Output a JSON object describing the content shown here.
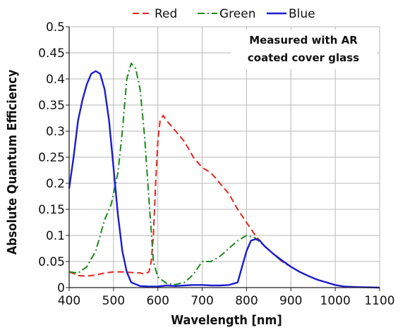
{
  "chart_data": {
    "type": "line",
    "xlabel": "Wavelength [nm]",
    "ylabel": "Absolute Quantum Efficiency",
    "xlim": [
      400,
      1100
    ],
    "ylim": [
      0,
      0.5
    ],
    "x_ticks": [
      400,
      500,
      600,
      700,
      800,
      900,
      1000,
      1100
    ],
    "y_ticks": [
      0,
      0.05,
      0.1,
      0.15,
      0.2,
      0.25,
      0.3,
      0.35,
      0.4,
      0.45,
      0.5
    ],
    "x_tick_labels": [
      "400",
      "500",
      "600",
      "700",
      "800",
      "900",
      "1000",
      "1100"
    ],
    "y_tick_labels": [
      "0",
      "0.05",
      "0.1",
      "0.15",
      "0.2",
      "0.25",
      "0.3",
      "0.35",
      "0.4",
      "0.45",
      "0.5"
    ],
    "grid": true,
    "legend_position": "top",
    "annotation": [
      "Measured with AR",
      "coated cover glass"
    ],
    "series": [
      {
        "name": "Red",
        "color": "#e8231d",
        "dash": "dashed",
        "points": [
          [
            400,
            0.03
          ],
          [
            410,
            0.027
          ],
          [
            420,
            0.023
          ],
          [
            440,
            0.022
          ],
          [
            460,
            0.024
          ],
          [
            480,
            0.028
          ],
          [
            500,
            0.03
          ],
          [
            520,
            0.03
          ],
          [
            540,
            0.029
          ],
          [
            560,
            0.028
          ],
          [
            570,
            0.026
          ],
          [
            580,
            0.03
          ],
          [
            585,
            0.05
          ],
          [
            590,
            0.1
          ],
          [
            595,
            0.2
          ],
          [
            600,
            0.28
          ],
          [
            605,
            0.32
          ],
          [
            612,
            0.33
          ],
          [
            620,
            0.32
          ],
          [
            640,
            0.3
          ],
          [
            660,
            0.28
          ],
          [
            680,
            0.25
          ],
          [
            700,
            0.23
          ],
          [
            720,
            0.22
          ],
          [
            740,
            0.2
          ],
          [
            760,
            0.18
          ],
          [
            780,
            0.15
          ],
          [
            800,
            0.125
          ],
          [
            820,
            0.1
          ],
          [
            840,
            0.08
          ],
          [
            860,
            0.065
          ],
          [
            880,
            0.05
          ],
          [
            900,
            0.04
          ],
          [
            920,
            0.03
          ],
          [
            940,
            0.022
          ],
          [
            960,
            0.015
          ],
          [
            980,
            0.01
          ],
          [
            1000,
            0.005
          ],
          [
            1020,
            0.002
          ],
          [
            1050,
            0.001
          ],
          [
            1100,
            0.0
          ]
        ]
      },
      {
        "name": "Green",
        "color": "#1a8a1a",
        "dash": "dashdot",
        "points": [
          [
            400,
            0.03
          ],
          [
            420,
            0.028
          ],
          [
            440,
            0.04
          ],
          [
            460,
            0.07
          ],
          [
            480,
            0.13
          ],
          [
            495,
            0.16
          ],
          [
            510,
            0.22
          ],
          [
            520,
            0.3
          ],
          [
            530,
            0.4
          ],
          [
            540,
            0.43
          ],
          [
            550,
            0.42
          ],
          [
            560,
            0.38
          ],
          [
            570,
            0.29
          ],
          [
            580,
            0.17
          ],
          [
            590,
            0.05
          ],
          [
            600,
            0.02
          ],
          [
            620,
            0.008
          ],
          [
            640,
            0.006
          ],
          [
            660,
            0.01
          ],
          [
            680,
            0.025
          ],
          [
            700,
            0.05
          ],
          [
            720,
            0.05
          ],
          [
            740,
            0.06
          ],
          [
            760,
            0.075
          ],
          [
            780,
            0.09
          ],
          [
            800,
            0.1
          ],
          [
            820,
            0.095
          ],
          [
            840,
            0.08
          ],
          [
            860,
            0.065
          ],
          [
            880,
            0.05
          ],
          [
            900,
            0.04
          ],
          [
            920,
            0.03
          ],
          [
            940,
            0.022
          ],
          [
            960,
            0.015
          ],
          [
            980,
            0.01
          ],
          [
            1000,
            0.005
          ],
          [
            1020,
            0.002
          ],
          [
            1050,
            0.001
          ],
          [
            1100,
            0.0
          ]
        ]
      },
      {
        "name": "Blue",
        "color": "#1c1cd0",
        "dash": "solid",
        "points": [
          [
            400,
            0.19
          ],
          [
            410,
            0.25
          ],
          [
            420,
            0.32
          ],
          [
            430,
            0.36
          ],
          [
            440,
            0.39
          ],
          [
            450,
            0.41
          ],
          [
            460,
            0.415
          ],
          [
            470,
            0.41
          ],
          [
            480,
            0.38
          ],
          [
            490,
            0.32
          ],
          [
            500,
            0.23
          ],
          [
            510,
            0.14
          ],
          [
            520,
            0.07
          ],
          [
            530,
            0.03
          ],
          [
            540,
            0.01
          ],
          [
            560,
            0.003
          ],
          [
            580,
            0.002
          ],
          [
            600,
            0.002
          ],
          [
            620,
            0.004
          ],
          [
            640,
            0.003
          ],
          [
            660,
            0.004
          ],
          [
            680,
            0.005
          ],
          [
            700,
            0.005
          ],
          [
            720,
            0.004
          ],
          [
            740,
            0.004
          ],
          [
            760,
            0.005
          ],
          [
            780,
            0.01
          ],
          [
            790,
            0.04
          ],
          [
            800,
            0.07
          ],
          [
            810,
            0.09
          ],
          [
            820,
            0.093
          ],
          [
            830,
            0.09
          ],
          [
            840,
            0.08
          ],
          [
            860,
            0.065
          ],
          [
            880,
            0.052
          ],
          [
            900,
            0.04
          ],
          [
            920,
            0.03
          ],
          [
            940,
            0.022
          ],
          [
            960,
            0.015
          ],
          [
            980,
            0.01
          ],
          [
            1000,
            0.005
          ],
          [
            1020,
            0.002
          ],
          [
            1050,
            0.001
          ],
          [
            1100,
            0.0
          ]
        ]
      }
    ]
  }
}
